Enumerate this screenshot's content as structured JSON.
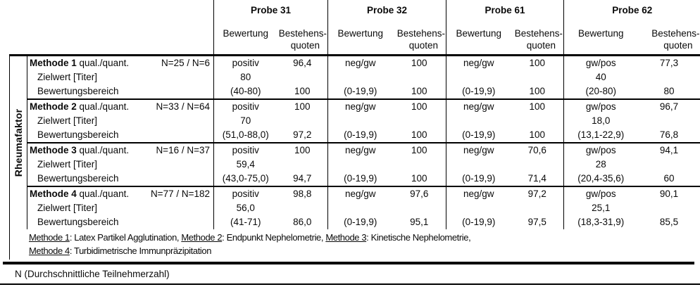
{
  "table": {
    "row_group_label": "Rheumafaktor",
    "probes": [
      "Probe 31",
      "Probe 32",
      "Probe 61",
      "Probe 62"
    ],
    "col_headers": {
      "bewertung": "Bewertung",
      "bestehens_line1": "Bestehens-",
      "bestehens_line2": "quoten"
    },
    "methods": [
      {
        "name": "Methode 1",
        "qualifier": "qual./quant.",
        "n_value": "N=25 / N=6",
        "zielwert_label": "Zielwert [Titer]",
        "bereich_label": "Bewertungsbereich",
        "cells": [
          {
            "bewertung": "positiv",
            "quote1": "96,4",
            "zielwert": "80",
            "bereich": "(40-80)",
            "quote3": "100"
          },
          {
            "bewertung": "neg/gw",
            "quote1": "100",
            "zielwert": "",
            "bereich": "(0-19,9)",
            "quote3": "100"
          },
          {
            "bewertung": "neg/gw",
            "quote1": "100",
            "zielwert": "",
            "bereich": "(0-19,9)",
            "quote3": "100"
          },
          {
            "bewertung": "gw/pos",
            "quote1": "77,3",
            "zielwert": "40",
            "bereich": "(20-80)",
            "quote3": "80"
          }
        ]
      },
      {
        "name": "Methode 2",
        "qualifier": "qual./quant.",
        "n_value": "N=33 / N=64",
        "zielwert_label": "Zielwert [Titer]",
        "bereich_label": "Bewertungsbereich",
        "cells": [
          {
            "bewertung": "positiv",
            "quote1": "100",
            "zielwert": "70",
            "bereich": "(51,0-88,0)",
            "quote3": "97,2"
          },
          {
            "bewertung": "neg/gw",
            "quote1": "100",
            "zielwert": "",
            "bereich": "(0-19,9)",
            "quote3": "100"
          },
          {
            "bewertung": "neg/gw",
            "quote1": "100",
            "zielwert": "",
            "bereich": "(0-19,9)",
            "quote3": "100"
          },
          {
            "bewertung": "gw/pos",
            "quote1": "96,7",
            "zielwert": "18,0",
            "bereich": "(13,1-22,9)",
            "quote3": "76,8"
          }
        ]
      },
      {
        "name": "Methode 3",
        "qualifier": "qual./quant.",
        "n_value": "N=16 / N=37",
        "zielwert_label": "Zielwert [Titer]",
        "bereich_label": "Bewertungsbereich",
        "cells": [
          {
            "bewertung": "positiv",
            "quote1": "100",
            "zielwert": "59,4",
            "bereich": "(43,0-75,0)",
            "quote3": "94,7"
          },
          {
            "bewertung": "neg/gw",
            "quote1": "100",
            "zielwert": "",
            "bereich": "(0-19,9)",
            "quote3": "100"
          },
          {
            "bewertung": "neg/gw",
            "quote1": "70,6",
            "zielwert": "",
            "bereich": "(0-19,9)",
            "quote3": "71,4"
          },
          {
            "bewertung": "gw/pos",
            "quote1": "94,1",
            "zielwert": "28",
            "bereich": "(20,4-35,6)",
            "quote3": "60"
          }
        ]
      },
      {
        "name": "Methode 4",
        "qualifier": "qual./quant.",
        "n_value": "N=77 / N=182",
        "zielwert_label": "Zielwert [Titer]",
        "bereich_label": "Bewertungsbereich",
        "cells": [
          {
            "bewertung": "positiv",
            "quote1": "98,8",
            "zielwert": "56,0",
            "bereich": "(41-71)",
            "quote3": "86,0"
          },
          {
            "bewertung": "neg/gw",
            "quote1": "97,6",
            "zielwert": "",
            "bereich": "(0-19,9)",
            "quote3": "95,1"
          },
          {
            "bewertung": "neg/gw",
            "quote1": "97,2",
            "zielwert": "",
            "bereich": "(0-19,9)",
            "quote3": "97,5"
          },
          {
            "bewertung": "gw/pos",
            "quote1": "90,1",
            "zielwert": "25,1",
            "bereich": "(18,3-31,9)",
            "quote3": "85,5"
          }
        ]
      }
    ],
    "footnote_line1": [
      {
        "text": "Methode 1"
      },
      {
        "text": ": Latex Partikel Agglutination, "
      },
      {
        "text": "Methode 2"
      },
      {
        "text": ": Endpunkt Nephelometrie, "
      },
      {
        "text": "Methode 3"
      },
      {
        "text": ": Kinetische Nephelometrie,"
      }
    ],
    "footnote_line2": [
      {
        "text": "Methode 4"
      },
      {
        "text": ": Turbidimetrische Immunpräzipitation"
      }
    ]
  },
  "note": "N (Durchschnittliche Teilnehmerzahl)"
}
